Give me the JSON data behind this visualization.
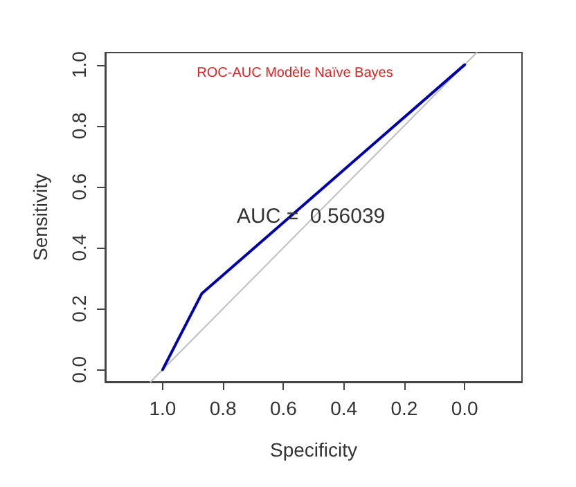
{
  "chart_data": {
    "type": "line",
    "title": "ROC-AUC Modèle Naïve Bayes",
    "xlabel": "Specificity",
    "ylabel": "Sensitivity",
    "annotations": [
      "AUC =  0.56039"
    ],
    "series": [
      {
        "color": "#bebebe",
        "x": [
          1.04,
          -0.04
        ],
        "values": [
          -0.04,
          1.04
        ]
      },
      {
        "color": "#0000aa",
        "x": [
          1.0,
          0.87,
          0.0
        ],
        "values": [
          0.0,
          0.25,
          1.0
        ]
      }
    ],
    "xlim": [
      1.19,
      -0.19
    ],
    "xticks": [
      {
        "value": 1,
        "label": "1.0"
      },
      0.8,
      0.6,
      0.4,
      0.2,
      {
        "value": 0,
        "label": "0.0"
      }
    ],
    "ylim": [
      -0.04,
      1.04
    ],
    "yticks": [
      {
        "value": 0,
        "label": "0.0"
      },
      0.2,
      0.4,
      0.6,
      0.8,
      {
        "value": 1,
        "label": "1.0"
      }
    ],
    "grid": false,
    "marker": "none",
    "line_style": "solid"
  }
}
